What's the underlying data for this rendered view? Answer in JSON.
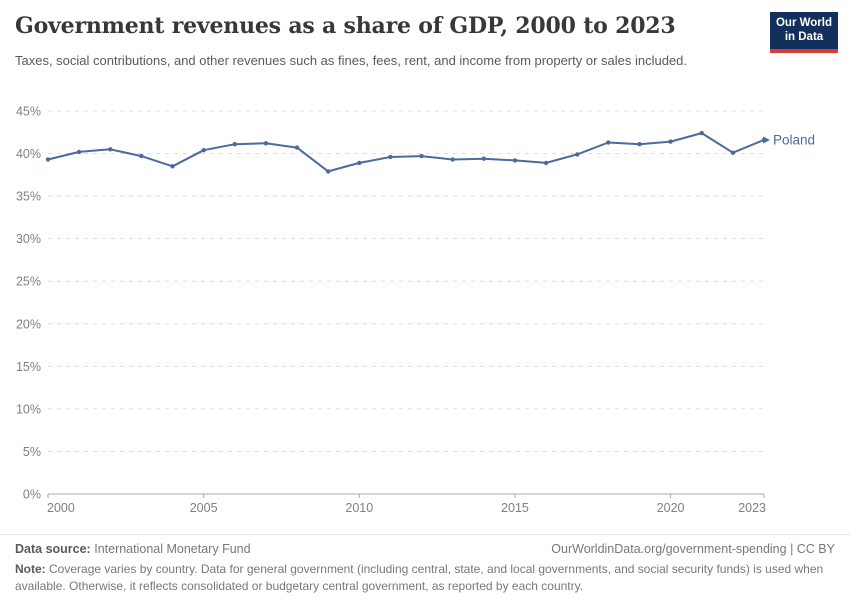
{
  "header": {
    "title": "Government revenues as a share of GDP, 2000 to 2023",
    "subtitle": "Taxes, social contributions, and other revenues such as fines, fees, rent, and income from property or sales included.",
    "logo": {
      "line1": "Our World",
      "line2": "in Data",
      "bg_color": "#12305b",
      "bar_color": "#d73c32"
    }
  },
  "chart_data": {
    "type": "line",
    "title": "Government revenues as a share of GDP, 2000 to 2023",
    "xlabel": "",
    "ylabel": "",
    "ylim": [
      0,
      45
    ],
    "yticks": [
      0,
      5,
      10,
      15,
      20,
      25,
      30,
      35,
      40,
      45
    ],
    "ytick_suffix": "%",
    "xticks": [
      2000,
      2005,
      2010,
      2015,
      2020,
      2023
    ],
    "grid": "horizontal dashed, solid baseline at 0%",
    "legend_position": "label at end of line",
    "x": [
      2000,
      2001,
      2002,
      2003,
      2004,
      2005,
      2006,
      2007,
      2008,
      2009,
      2010,
      2011,
      2012,
      2013,
      2014,
      2015,
      2016,
      2017,
      2018,
      2019,
      2020,
      2021,
      2022,
      2023
    ],
    "series": [
      {
        "name": "Poland",
        "color": "#4c6a9c",
        "values": [
          39.3,
          40.2,
          40.5,
          39.7,
          38.5,
          40.4,
          41.1,
          41.2,
          40.7,
          37.9,
          38.9,
          39.6,
          39.7,
          39.3,
          39.4,
          39.2,
          38.9,
          39.9,
          41.3,
          41.1,
          41.4,
          42.4,
          40.1,
          41.6
        ]
      }
    ],
    "colors": {
      "gridline": "#dcdcdc",
      "axis": "#a9a9a9",
      "tick_label": "#808080"
    }
  },
  "footer": {
    "datasource_label": "Data source:",
    "datasource_value": "International Monetary Fund",
    "link": "OurWorldinData.org/government-spending | CC BY",
    "note_label": "Note:",
    "note_value": "Coverage varies by country. Data for general government (including central, state, and local governments, and social security funds) is used when available. Otherwise, it reflects consolidated or budgetary central government, as reported by each country."
  }
}
